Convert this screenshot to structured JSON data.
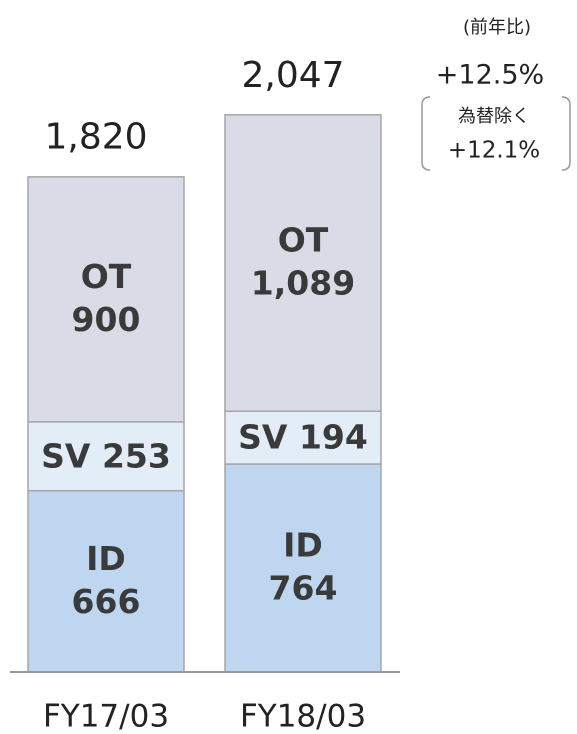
{
  "chart_data": {
    "type": "stacked_bar",
    "categories": [
      "FY17/03",
      "FY18/03"
    ],
    "series": [
      {
        "name": "ID",
        "color": "#bed6ef",
        "values": [
          666,
          764
        ]
      },
      {
        "name": "SV",
        "color": "#e2edf8",
        "values": [
          253,
          194
        ]
      },
      {
        "name": "OT",
        "color": "#d9dbe6",
        "values": [
          900,
          1089
        ],
        "value_labels": [
          "900",
          "1,089"
        ]
      }
    ],
    "totals": [
      1820,
      2047
    ],
    "total_labels": [
      "1,820",
      "2,047"
    ],
    "annotations": [
      "(前年比)",
      "+12.5%",
      "為替除く",
      "+12.1%"
    ]
  }
}
